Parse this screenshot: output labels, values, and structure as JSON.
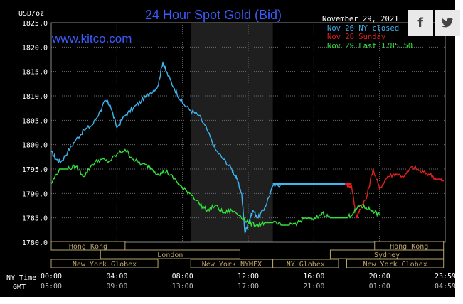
{
  "chart_data": {
    "type": "line",
    "title": "24 Hour Spot Gold (Bid)",
    "watermark": "www.kitco.com",
    "date_label": "November 29, 2021",
    "y_unit_label": "USD/oz",
    "ylim": [
      1780.0,
      1825.0
    ],
    "y_ticks": [
      "1825.0",
      "1820.0",
      "1815.0",
      "1810.0",
      "1805.0",
      "1800.0",
      "1795.0",
      "1790.0",
      "1785.0",
      "1780.0"
    ],
    "x_ticks_ny": [
      "00:00",
      "04:00",
      "08:00",
      "12:00",
      "16:00",
      "20:00",
      "23:59"
    ],
    "x_ticks_gmt": [
      "05:00",
      "09:00",
      "13:00",
      "17:00",
      "21:00",
      "01:00",
      "04:59"
    ],
    "row_label_ny": "NY Time",
    "row_label_gmt": "GMT",
    "shaded_region_hours": [
      8.5,
      13.5
    ],
    "legend": [
      "Nov 26 NY closed",
      "Nov 28 Sunday",
      "Nov 29 Last 1785.50"
    ],
    "series": [
      {
        "name": "Nov 26 NY closed",
        "color": "#3fb4ee",
        "x": [
          0,
          0.3,
          0.6,
          1,
          1.5,
          2,
          2.5,
          3,
          3.3,
          3.6,
          4,
          4.5,
          5,
          5.5,
          6,
          6.5,
          6.8,
          7,
          7.5,
          8,
          8.5,
          9,
          9.5,
          10,
          10.5,
          11,
          11.3,
          11.6,
          11.8,
          12,
          12.3,
          12.6,
          13,
          13.5,
          14,
          15,
          16,
          17,
          17.9
        ],
        "y": [
          1798.5,
          1797,
          1796.5,
          1798.5,
          1801,
          1803,
          1804,
          1807,
          1809,
          1808,
          1803.5,
          1806,
          1807.5,
          1809,
          1810.5,
          1812,
          1817,
          1815,
          1811.5,
          1808.5,
          1807,
          1806,
          1803,
          1799,
          1797,
          1795,
          1793,
          1790,
          1782,
          1784,
          1786.5,
          1785,
          1787,
          1791.5,
          1791.9,
          1791.9,
          1791.9,
          1791.9,
          1791.9
        ]
      },
      {
        "name": "Nov 28 Sunday",
        "color": "#e0201c",
        "x": [
          18,
          18.3,
          18.6,
          18.9,
          19.2,
          19.6,
          20,
          20.5,
          21,
          21.5,
          22,
          22.5,
          23,
          23.5,
          23.9
        ],
        "y": [
          1791.9,
          1791.5,
          1785,
          1787.5,
          1789,
          1795,
          1791,
          1793.5,
          1794,
          1793.5,
          1795.5,
          1794.5,
          1794,
          1793,
          1792.5
        ]
      },
      {
        "name": "Nov 29 Last 1785.50",
        "color": "#34e03c",
        "x": [
          0,
          0.5,
          1,
          1.5,
          2,
          2.5,
          3,
          3.5,
          4,
          4.5,
          5,
          5.5,
          6,
          6.5,
          7,
          7.5,
          8,
          8.5,
          9,
          9.5,
          10,
          10.5,
          11,
          11.5,
          12,
          12.5,
          13,
          13.5,
          14,
          14.5,
          15,
          15.5,
          16,
          16.5,
          17,
          17.5,
          18,
          18.4,
          18.8,
          19.2,
          19.6,
          20
        ],
        "y": [
          1792,
          1795,
          1795,
          1795.5,
          1793.5,
          1796,
          1797,
          1796.5,
          1798,
          1799,
          1797,
          1796,
          1795.5,
          1794,
          1794.5,
          1793,
          1791,
          1790,
          1788,
          1786.5,
          1787.5,
          1786,
          1786.5,
          1785.5,
          1784,
          1783.5,
          1784,
          1784,
          1783.5,
          1783.5,
          1784,
          1785,
          1784.5,
          1786,
          1785,
          1785,
          1785,
          1786,
          1787.5,
          1787,
          1786.5,
          1785.5
        ]
      }
    ],
    "session_bars": [
      {
        "label": "Hong Kong",
        "start": 0,
        "end": 4.5,
        "row": 0
      },
      {
        "label": "Hong Kong",
        "start": 19.7,
        "end": 23.9,
        "row": 0
      },
      {
        "label": "London",
        "start": 3,
        "end": 11.5,
        "row": 1
      },
      {
        "label": "Sydney",
        "start": 17,
        "end": 23.9,
        "row": 1
      },
      {
        "label": "New York Globex",
        "start": 0,
        "end": 6.5,
        "row": 2
      },
      {
        "label": "New York NYMEX",
        "start": 8.5,
        "end": 13.5,
        "row": 2
      },
      {
        "label": "NY Globex",
        "start": 13.5,
        "end": 17.5,
        "row": 2
      },
      {
        "label": "New York Globex",
        "start": 18,
        "end": 23.9,
        "row": 2
      }
    ],
    "colors": {
      "background": "#000000",
      "grid": "#6e6e6e",
      "title": "#3a5cff",
      "watermark": "#3a5cff",
      "axis_text": "#ffffff",
      "shade": "#1f1f1f",
      "session_border": "#b9a46a"
    }
  },
  "share": {
    "facebook_icon": "f",
    "twitter_icon": "🐦"
  }
}
